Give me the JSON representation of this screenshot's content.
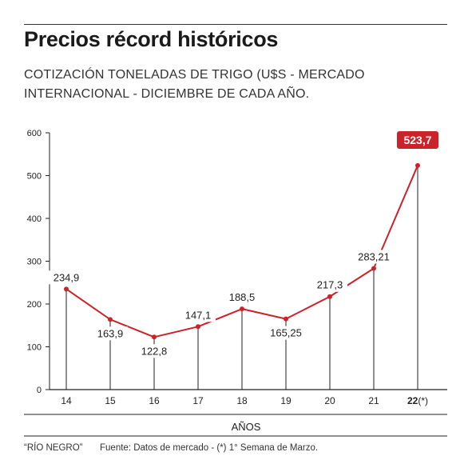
{
  "title": "Precios récord históricos",
  "subtitle": "COTIZACIÓN TONELADAS DE TRIGO (U$S - MERCADO INTERNACIONAL - DICIEMBRE DE CADA AÑO.",
  "footer": {
    "credit": "“RÍO NEGRO”",
    "source": "Fuente: Datos de mercado - (*) 1° Semana de Marzo."
  },
  "colors": {
    "line": "#cc2229",
    "highlight_bg": "#cc2229",
    "text": "#222222"
  },
  "chart_data": {
    "type": "line",
    "xlabel": "AÑOS",
    "ylabel": "",
    "ylim": [
      0,
      600
    ],
    "yticks": [
      "0",
      "100",
      "200",
      "300",
      "400",
      "500",
      "600"
    ],
    "grid": false,
    "categories": [
      {
        "main": "14",
        "suffix": ""
      },
      {
        "main": "15",
        "suffix": ""
      },
      {
        "main": "16",
        "suffix": ""
      },
      {
        "main": "17",
        "suffix": ""
      },
      {
        "main": "18",
        "suffix": ""
      },
      {
        "main": "19",
        "suffix": ""
      },
      {
        "main": "20",
        "suffix": ""
      },
      {
        "main": "21",
        "suffix": ""
      },
      {
        "main": "22",
        "suffix": "(*)"
      }
    ],
    "values": [
      234.9,
      163.9,
      122.8,
      147.1,
      188.5,
      165.25,
      217.3,
      283.21,
      523.7
    ],
    "labels": [
      "234,9",
      "163,9",
      "122,8",
      "147,1",
      "188,5",
      "165,25",
      "217,3",
      "283,21",
      "523,7"
    ],
    "highlight_index": 8
  }
}
